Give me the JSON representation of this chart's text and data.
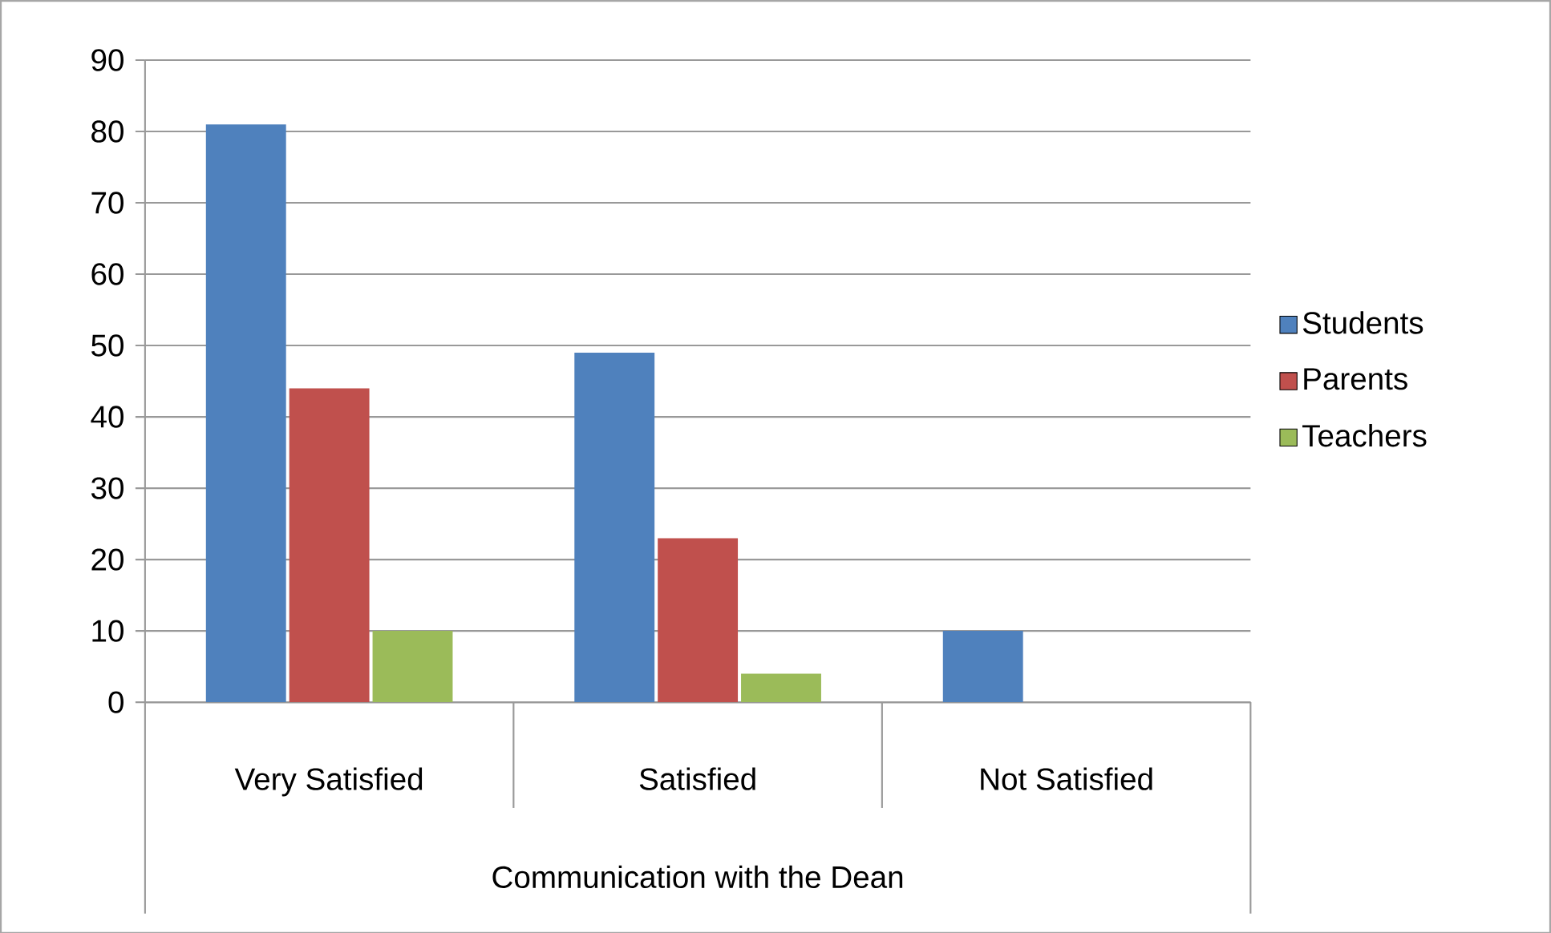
{
  "chart_data": {
    "type": "bar",
    "xlabel": "Communication with the Dean",
    "categories": [
      "Very Satisfied",
      "Satisfied",
      "Not Satisfied"
    ],
    "series": [
      {
        "name": "Students",
        "color": "#4f81bd",
        "values": [
          81,
          49,
          10
        ]
      },
      {
        "name": "Parents",
        "color": "#c0504d",
        "values": [
          44,
          23,
          0
        ]
      },
      {
        "name": "Teachers",
        "color": "#9bbb59",
        "values": [
          10,
          4,
          0
        ]
      }
    ],
    "ylim": [
      0,
      90
    ],
    "yticks": [
      0,
      10,
      20,
      30,
      40,
      50,
      60,
      70,
      80,
      90
    ],
    "grid": "y",
    "legend": "right"
  }
}
